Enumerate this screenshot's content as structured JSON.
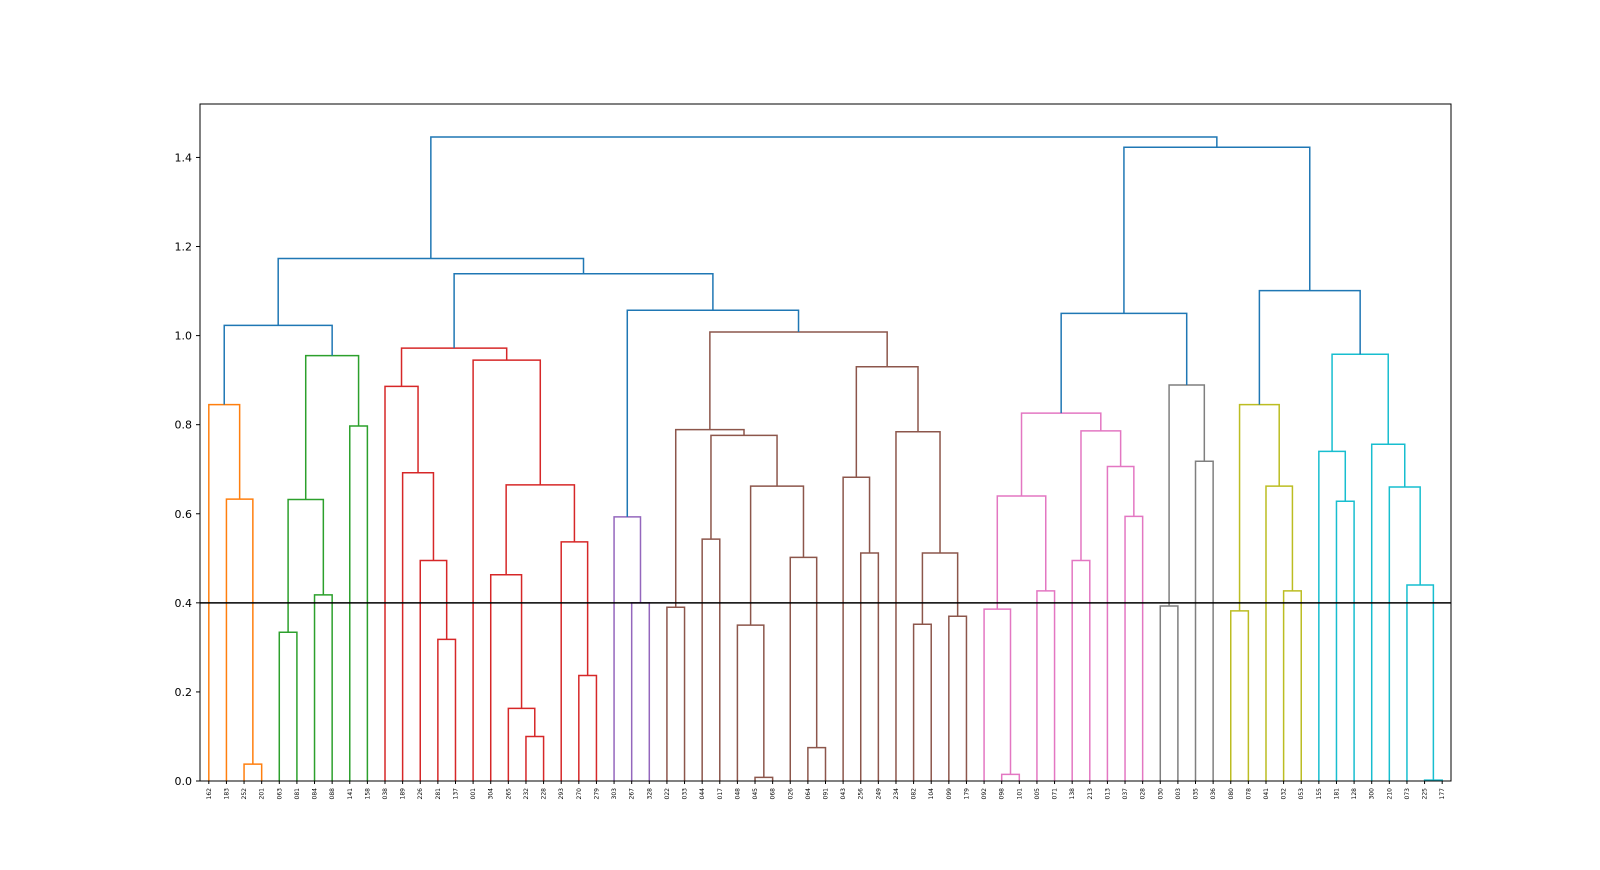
{
  "chart_data": {
    "type": "dendrogram",
    "title": "",
    "xlabel": "",
    "ylabel": "",
    "ylim": [
      0,
      1.52
    ],
    "yticks": [
      "0.0",
      "0.2",
      "0.4",
      "0.6",
      "0.8",
      "1.0",
      "1.2",
      "1.4"
    ],
    "ytick_values": [
      0.0,
      0.2,
      0.4,
      0.6,
      0.8,
      1.0,
      1.2,
      1.4
    ],
    "leaves": [
      "162",
      "183",
      "252",
      "201",
      "063",
      "081",
      "084",
      "088",
      "141",
      "158",
      "038",
      "189",
      "226",
      "281",
      "137",
      "001",
      "304",
      "265",
      "232",
      "228",
      "293",
      "270",
      "279",
      "303",
      "267",
      "328",
      "022",
      "033",
      "044",
      "017",
      "048",
      "045",
      "068",
      "026",
      "064",
      "091",
      "043",
      "256",
      "249",
      "234",
      "082",
      "104",
      "099",
      "179",
      "092",
      "098",
      "101",
      "005",
      "071",
      "138",
      "213",
      "013",
      "037",
      "028",
      "030",
      "003",
      "035",
      "036",
      "080",
      "078",
      "041",
      "032",
      "053",
      "155",
      "181",
      "128",
      "300",
      "210",
      "073",
      "225",
      "177"
    ],
    "threshold": 0.4,
    "threshold_color": "#000000",
    "links": [
      {
        "l": "162",
        "r": "183",
        "h": 0.845,
        "c": "#ff7f0e"
      },
      {
        "l": "252",
        "r": "201",
        "h": 0.038,
        "c": "#ff7f0e"
      },
      {
        "l": "063",
        "r": "081",
        "h": 0.334,
        "c": "#2ca02c"
      },
      {
        "l": "084",
        "r": "088",
        "h": 0.418,
        "c": "#2ca02c"
      },
      {
        "l": "141",
        "r": "158",
        "h": 0.797,
        "c": "#2ca02c"
      },
      {
        "l": "189",
        "r": "226",
        "h": 0.692,
        "c": "#d62728"
      },
      {
        "l": "281",
        "r": "137",
        "h": 0.318,
        "c": "#d62728"
      },
      {
        "l": "232",
        "r": "228",
        "h": 0.1,
        "c": "#d62728"
      },
      {
        "l": "270",
        "r": "279",
        "h": 0.237,
        "c": "#d62728"
      },
      {
        "l": "267",
        "r": "328",
        "h": 0.4,
        "c": "#9467bd"
      },
      {
        "l": "022",
        "r": "033",
        "h": 0.39,
        "c": "#8c564b"
      },
      {
        "l": "044",
        "r": "017",
        "h": 0.543,
        "c": "#8c564b"
      },
      {
        "l": "045",
        "r": "068",
        "h": 0.008,
        "c": "#8c564b"
      },
      {
        "l": "064",
        "r": "091",
        "h": 0.075,
        "c": "#8c564b"
      },
      {
        "l": "043",
        "r": "256",
        "h": 0.682,
        "c": "#8c564b"
      },
      {
        "l": "249",
        "r": "234",
        "h": 0.512,
        "c": "#8c564b"
      },
      {
        "l": "082",
        "r": "104",
        "h": 0.352,
        "c": "#8c564b"
      },
      {
        "l": "099",
        "r": "179",
        "h": 0.37,
        "c": "#8c564b"
      },
      {
        "l": "092",
        "r": "098",
        "h": 0.386,
        "c": "#e377c2"
      },
      {
        "l": "101",
        "r": "005",
        "h": 0.015,
        "c": "#e377c2"
      },
      {
        "l": "138",
        "r": "213",
        "h": 0.495,
        "c": "#e377c2"
      },
      {
        "l": "037",
        "r": "028",
        "h": 0.594,
        "c": "#e377c2"
      },
      {
        "l": "030",
        "r": "003",
        "h": 0.393,
        "c": "#7f7f7f"
      },
      {
        "l": "035",
        "r": "036",
        "h": 0.718,
        "c": "#7f7f7f"
      },
      {
        "l": "080",
        "r": "078",
        "h": 0.382,
        "c": "#bcbd22"
      },
      {
        "l": "032",
        "r": "053",
        "h": 0.427,
        "c": "#bcbd22"
      },
      {
        "l": "155",
        "r": "181",
        "h": 0.74,
        "c": "#17becf"
      },
      {
        "l": "128",
        "r": "300",
        "h": 0.628,
        "c": "#17becf"
      },
      {
        "l": "210",
        "r": "073",
        "h": 0.756,
        "c": "#17becf"
      },
      {
        "l": "225",
        "r": "177",
        "h": 0.002,
        "c": "#17becf"
      }
    ],
    "tree": {
      "id": "root"
    }
  }
}
